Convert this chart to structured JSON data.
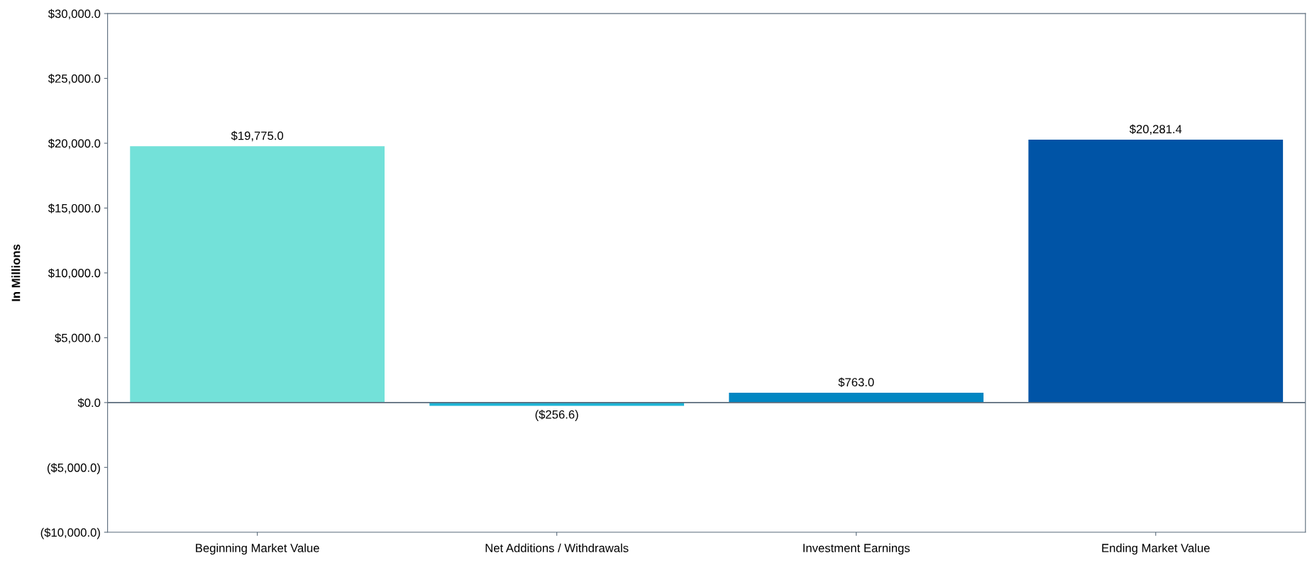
{
  "chart_data": {
    "type": "bar",
    "ylabel": "In Millions",
    "categories": [
      "Beginning Market Value",
      "Net Additions / Withdrawals",
      "Investment Earnings",
      "Ending Market Value"
    ],
    "values": [
      19775.0,
      -256.6,
      763.0,
      20281.4
    ],
    "colors": [
      "#73e1d9",
      "#1fb5d6",
      "#0086c2",
      "#0054a6"
    ],
    "value_labels": [
      "$19,775.0",
      "($256.6)",
      "$763.0",
      "$20,281.4"
    ],
    "ylim": [
      -10000,
      30000
    ],
    "yticks": [
      {
        "value": -10000,
        "label": "($10,000.0)"
      },
      {
        "value": -5000,
        "label": "($5,000.0)"
      },
      {
        "value": 0,
        "label": "$0.0"
      },
      {
        "value": 5000,
        "label": "$5,000.0"
      },
      {
        "value": 10000,
        "label": "$10,000.0"
      },
      {
        "value": 15000,
        "label": "$15,000.0"
      },
      {
        "value": 20000,
        "label": "$20,000.0"
      },
      {
        "value": 25000,
        "label": "$25,000.0"
      },
      {
        "value": 30000,
        "label": "$30,000.0"
      }
    ],
    "ref_lines": [
      {
        "axis": "y",
        "value": 0,
        "color": "#5a6b7b"
      }
    ]
  }
}
